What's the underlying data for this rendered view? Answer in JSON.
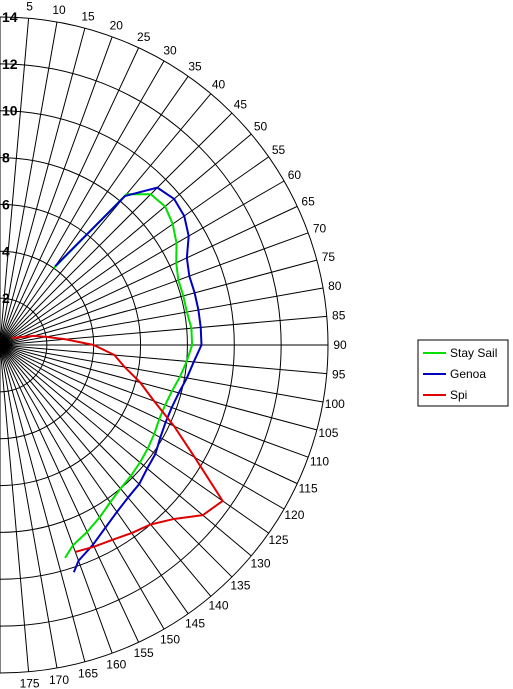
{
  "chart_data": {
    "type": "line",
    "subtype": "polar",
    "angle_axis": {
      "unit": "degrees",
      "range": [
        0,
        180
      ],
      "ticks": [
        5,
        10,
        15,
        20,
        25,
        30,
        35,
        40,
        45,
        50,
        55,
        60,
        65,
        70,
        75,
        80,
        85,
        90,
        95,
        100,
        105,
        110,
        115,
        120,
        125,
        130,
        135,
        140,
        145,
        150,
        155,
        160,
        165,
        170,
        175
      ]
    },
    "radial_axis": {
      "range": [
        0,
        14
      ],
      "ticks": [
        2,
        4,
        6,
        8,
        10,
        12,
        14
      ],
      "rings": [
        2,
        4,
        6,
        8,
        10,
        12,
        14
      ]
    },
    "legend_position": "right",
    "grid": true,
    "series": [
      {
        "name": "Stay Sail",
        "color": "#00e000",
        "points": [
          [
            35,
            4.0
          ],
          [
            40,
            8.4
          ],
          [
            45,
            9.1
          ],
          [
            50,
            9.2
          ],
          [
            55,
            9.0
          ],
          [
            60,
            8.7
          ],
          [
            65,
            8.3
          ],
          [
            70,
            8.1
          ],
          [
            75,
            8.1
          ],
          [
            80,
            8.1
          ],
          [
            85,
            8.2
          ],
          [
            90,
            8.2
          ],
          [
            95,
            8.0
          ],
          [
            100,
            7.8
          ],
          [
            105,
            7.6
          ],
          [
            110,
            7.5
          ],
          [
            115,
            7.5
          ],
          [
            120,
            7.6
          ],
          [
            125,
            7.7
          ],
          [
            130,
            7.8
          ],
          [
            135,
            7.9
          ],
          [
            140,
            8.0
          ],
          [
            145,
            8.2
          ],
          [
            150,
            8.5
          ],
          [
            155,
            8.8
          ],
          [
            160,
            9.1
          ],
          [
            163,
            9.5
          ]
        ]
      },
      {
        "name": "Genoa",
        "color": "#0000c0",
        "points": [
          [
            35,
            4.1
          ],
          [
            40,
            8.3
          ],
          [
            45,
            9.5
          ],
          [
            50,
            9.7
          ],
          [
            55,
            9.6
          ],
          [
            60,
            9.3
          ],
          [
            65,
            8.8
          ],
          [
            70,
            8.6
          ],
          [
            75,
            8.6
          ],
          [
            80,
            8.6
          ],
          [
            85,
            8.6
          ],
          [
            90,
            8.6
          ],
          [
            95,
            8.3
          ],
          [
            100,
            8.1
          ],
          [
            105,
            7.9
          ],
          [
            110,
            7.8
          ],
          [
            115,
            7.8
          ],
          [
            120,
            7.9
          ],
          [
            125,
            8.1
          ],
          [
            130,
            8.2
          ],
          [
            135,
            8.4
          ],
          [
            140,
            8.5
          ],
          [
            145,
            8.7
          ],
          [
            150,
            9.0
          ],
          [
            155,
            9.4
          ],
          [
            160,
            9.8
          ],
          [
            162,
            10.2
          ]
        ]
      },
      {
        "name": "Spi",
        "color": "#e00000",
        "points": [
          [
            60,
            0.6
          ],
          [
            70,
            1.0
          ],
          [
            75,
            1.5
          ],
          [
            80,
            2.0
          ],
          [
            85,
            2.8
          ],
          [
            90,
            4.0
          ],
          [
            95,
            4.9
          ],
          [
            100,
            5.4
          ],
          [
            105,
            6.2
          ],
          [
            110,
            7.0
          ],
          [
            115,
            8.2
          ],
          [
            120,
            9.6
          ],
          [
            125,
            11.6
          ],
          [
            130,
            11.3
          ],
          [
            135,
            10.5
          ],
          [
            140,
            10.0
          ],
          [
            145,
            9.8
          ],
          [
            150,
            9.6
          ],
          [
            155,
            9.5
          ],
          [
            160,
            9.4
          ]
        ]
      }
    ]
  }
}
